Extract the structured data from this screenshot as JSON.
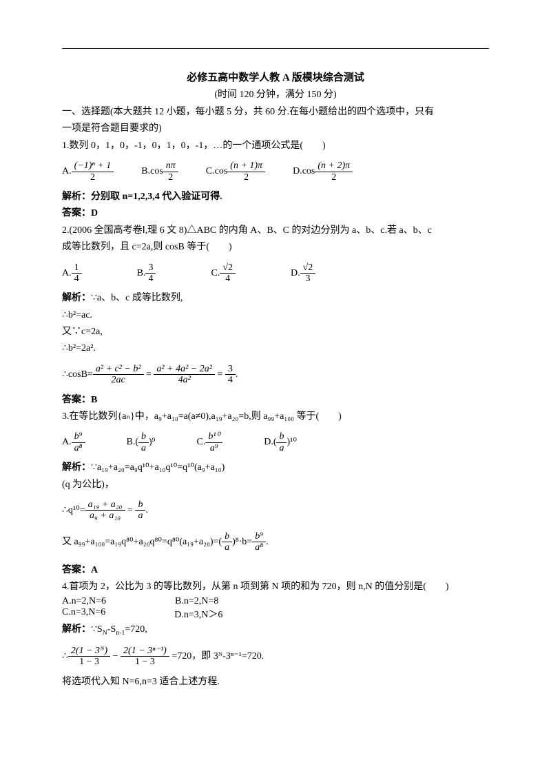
{
  "title": "必修五高中数学人教 A 版模块综合测试",
  "subtitle": "(时间 120 分钟，满分 150 分)",
  "section1_intro1": "一、选择题(本大题共 12 小题，每小题 5 分，共 60 分.在每小题给出的四个选项中，只有",
  "section1_intro2": "一项是符合题目要求的)",
  "q1_stem": "1.数列 0，1，0，-1，0，1，0，-1，…的一个通项公式是(　　)",
  "q1_A_prefix": "A.",
  "q1_A_num": "(−1)ⁿ + 1",
  "q1_A_den": "2",
  "q1_B_prefix": "B.cos",
  "q1_B_num": "nπ",
  "q1_B_den": "2",
  "q1_C_prefix": "C.cos",
  "q1_C_num": "(n + 1)π",
  "q1_C_den": "2",
  "q1_D_prefix": "D.cos",
  "q1_D_num": "(n + 2)π",
  "q1_D_den": "2",
  "q1_jiexi": "解析：分别取 n=1,2,3,4 代入验证可得.",
  "q1_ans": "答案：D",
  "q2_stem1": "2.(2006 全国高考卷Ⅰ,理 6 文 8)△ABC 的内角 A、B、C 的对边分别为 a、b、c.若 a、b、c",
  "q2_stem2": "成等比数列，且 c=2a,则 cosB 等于(　　)",
  "q2_A_prefix": "A.",
  "q2_A_num": "1",
  "q2_A_den": "4",
  "q2_B_prefix": "B.",
  "q2_B_num": "3",
  "q2_B_den": "4",
  "q2_C_prefix": "C.",
  "q2_C_num": "√2",
  "q2_C_den": "4",
  "q2_D_prefix": "D.",
  "q2_D_num": "√2",
  "q2_D_den": "3",
  "q2_jiexi1": "解析：∵a、b、c 成等比数列,",
  "q2_jiexi2": "∴b²=ac.",
  "q2_jiexi3": "又∵c=2a,",
  "q2_jiexi4": "∴b²=2a².",
  "q2_cosb_left": "∴cosB=",
  "q2_f1_num": "a² + c² − b²",
  "q2_f1_den": "2ac",
  "q2_eq1": " = ",
  "q2_f2_num": "a² + 4a² − 2a²",
  "q2_f2_den": "4a²",
  "q2_eq2": " = ",
  "q2_f3_num": "3",
  "q2_f3_den": "4",
  "q2_dot": ".",
  "q2_ans": "答案：B",
  "q3_stem": "3.在等比数列{aₙ}中，a₉+a₁₀=a(a≠0),a₁₉+a₂₀=b,则 a₉₉+a₁₀₀ 等于(　　)",
  "q3_A_prefix": "A.",
  "q3_A_num": "b⁹",
  "q3_A_den": "a⁸",
  "q3_B_prefix": "B.(",
  "q3_B_num": "b",
  "q3_B_den": "a",
  "q3_B_suffix": ")⁹",
  "q3_C_prefix": "C.",
  "q3_C_num": "b¹⁰",
  "q3_C_den": "a⁹",
  "q3_D_prefix": "D.(",
  "q3_D_num": "b",
  "q3_D_den": "a",
  "q3_D_suffix": ")¹⁰",
  "q3_jiexi1": "解析：∵a₁₉+a₂₀=a₉q¹⁰+a₁₀q¹⁰=q¹⁰(a₉+a₁₀)",
  "q3_jiexi2": "(q 为公比)，",
  "q3_q10_left": "∴q¹⁰=",
  "q3_q10_f1_num": "a₁₉ + a₂₀",
  "q3_q10_f1_den": "a₉ + a₁₀",
  "q3_q10_eq": " = ",
  "q3_q10_f2_num": "b",
  "q3_q10_f2_den": "a",
  "q3_q10_dot": ".",
  "q3_final_left": "又 a₉₉+a₁₀₀=a₁₉q⁸⁰+a₂₀q⁸⁰=q⁸⁰(a₁₉+a₂₀)=(",
  "q3_final_f1_num": "b",
  "q3_final_f1_den": "a",
  "q3_final_mid": ")⁸·b=",
  "q3_final_f2_num": "b⁹",
  "q3_final_f2_den": "a⁸",
  "q3_final_dot": ".",
  "q3_ans": "答案：A",
  "q4_stem": "4.首项为 2，公比为 3 的等比数列，从第 n 项到第 N 项的和为 720，则 n,N 的值分别是(　　)",
  "q4_A": "A.n=2,N=6",
  "q4_B": "B.n=2,N=8",
  "q4_C": "C.n=3,N=6",
  "q4_D": "D.n=3,N＞6",
  "q4_jiexi1": "解析：∵Sₙ-Sₙ₋₁=720,",
  "q4_s_left": "∴",
  "q4_s_f1_num": "2(1 − 3ᴺ)",
  "q4_s_f1_den": "1 − 3",
  "q4_s_minus": " − ",
  "q4_s_f2_num": "2(1 − 3ⁿ⁻¹)",
  "q4_s_f2_den": "1 − 3",
  "q4_s_right": " =720，即 3ᴺ-3ⁿ⁻¹=720.",
  "q4_jiexi2": "将选项代入知 N=6,n=3 适合上述方程."
}
